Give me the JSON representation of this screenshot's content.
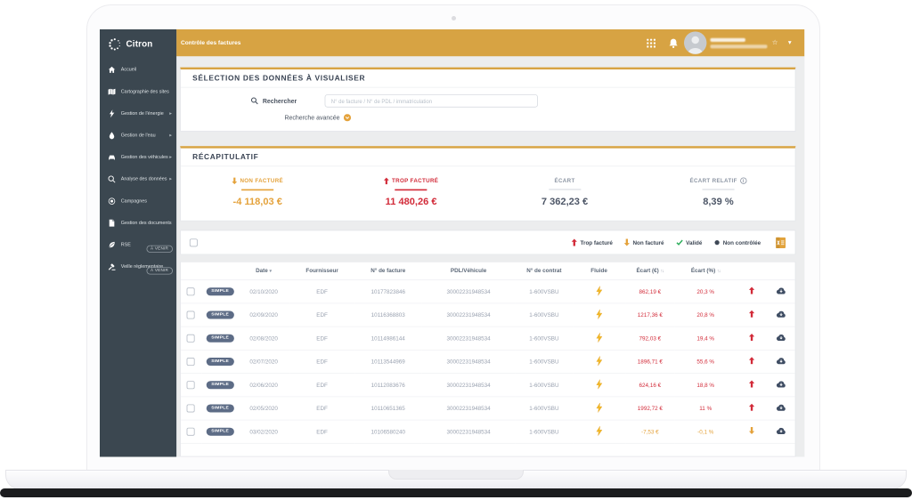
{
  "brand": {
    "name": "Citron"
  },
  "topbar": {
    "title": "Contrôle des factures",
    "user_name_redacted": true
  },
  "sidebar": {
    "items": [
      {
        "icon": "home-icon",
        "label": "Accueil"
      },
      {
        "icon": "map-icon",
        "label": "Cartographie des sites"
      },
      {
        "icon": "energy-icon",
        "label": "Gestion de l'énergie",
        "expandable": true
      },
      {
        "icon": "water-icon",
        "label": "Gestion de l'eau",
        "expandable": true
      },
      {
        "icon": "vehicle-icon",
        "label": "Gestion des véhicules",
        "expandable": true
      },
      {
        "icon": "analytics-icon",
        "label": "Analyse des données",
        "expandable": true
      },
      {
        "icon": "campaign-icon",
        "label": "Campagnes"
      },
      {
        "icon": "document-icon",
        "label": "Gestion des documents"
      },
      {
        "icon": "leaf-icon",
        "label": "RSE",
        "badge": "À VENIR"
      },
      {
        "icon": "gavel-icon",
        "label": "Veille réglementaire",
        "badge": "À VENIR"
      }
    ]
  },
  "selection": {
    "title": "SÉLECTION DES DONNÉES À VISUALISER",
    "search_label": "Rechercher",
    "search_placeholder": "N° de facture / N° de PDL / immatriculation",
    "advanced_label": "Recherche avancée"
  },
  "recap": {
    "title": "RÉCAPITULATIF",
    "stats": [
      {
        "label": "NON FACTURÉ",
        "value": "-4 118,03 €",
        "tone": "gold",
        "arrow": "down"
      },
      {
        "label": "TROP FACTURÉ",
        "value": "11 480,26 €",
        "tone": "red",
        "arrow": "up"
      },
      {
        "label": "ÉCART",
        "value": "7 362,23 €",
        "tone": "neutral"
      },
      {
        "label": "ÉCART RELATIF",
        "value": "8,39 %",
        "tone": "neutral",
        "info": true
      }
    ]
  },
  "legend": {
    "items": [
      {
        "icon": "arrow-up",
        "color": "#D22B39",
        "label": "Trop facturé"
      },
      {
        "icon": "arrow-down",
        "color": "#E4A23B",
        "label": "Non facturé"
      },
      {
        "icon": "check",
        "color": "#2EAE5C",
        "label": "Validé"
      },
      {
        "icon": "dot",
        "color": "#3E4856",
        "label": "Non contrôlée"
      }
    ]
  },
  "table": {
    "columns": [
      "",
      "",
      "Date",
      "Fournisseur",
      "N° de facture",
      "PDL/Véhicule",
      "N° de contrat",
      "Fluide",
      "Écart (€)",
      "Écart (%)",
      "",
      ""
    ],
    "rows": [
      {
        "badge": "SIMPLE",
        "date": "02/10/2020",
        "supplier": "EDF",
        "invoice": "10177823846",
        "pdl": "30002231948534",
        "contract": "1-600VSBU",
        "fluid": "electricity",
        "amount": "862,19 €",
        "percent": "20,3 %",
        "direction": "up"
      },
      {
        "badge": "SIMPLE",
        "date": "02/09/2020",
        "supplier": "EDF",
        "invoice": "10116368803",
        "pdl": "30002231948534",
        "contract": "1-600VSBU",
        "fluid": "electricity",
        "amount": "1217,36 €",
        "percent": "20,8 %",
        "direction": "up"
      },
      {
        "badge": "SIMPLE",
        "date": "02/08/2020",
        "supplier": "EDF",
        "invoice": "10114986144",
        "pdl": "30002231948534",
        "contract": "1-600VSBU",
        "fluid": "electricity",
        "amount": "792,03 €",
        "percent": "19,4 %",
        "direction": "up"
      },
      {
        "badge": "SIMPLE",
        "date": "02/07/2020",
        "supplier": "EDF",
        "invoice": "10113544969",
        "pdl": "30002231948534",
        "contract": "1-600VSBU",
        "fluid": "electricity",
        "amount": "1896,71 €",
        "percent": "55,6 %",
        "direction": "up"
      },
      {
        "badge": "SIMPLE",
        "date": "02/06/2020",
        "supplier": "EDF",
        "invoice": "10112083676",
        "pdl": "30002231948534",
        "contract": "1-600VSBU",
        "fluid": "electricity",
        "amount": "624,16 €",
        "percent": "18,8 %",
        "direction": "up"
      },
      {
        "badge": "SIMPLE",
        "date": "02/05/2020",
        "supplier": "EDF",
        "invoice": "10110651365",
        "pdl": "30002231948534",
        "contract": "1-600VSBU",
        "fluid": "electricity",
        "amount": "1992,72 €",
        "percent": "11 %",
        "direction": "up"
      },
      {
        "badge": "SIMPLE",
        "date": "03/02/2020",
        "supplier": "EDF",
        "invoice": "10106580240",
        "pdl": "30002231948534",
        "contract": "1-600VSBU",
        "fluid": "electricity",
        "amount": "-7,53 €",
        "percent": "-0,1 %",
        "direction": "down"
      }
    ]
  },
  "colors": {
    "topbar_gold": "#D7A343",
    "accent_gold": "#E4A23B",
    "alert_red": "#D22B39",
    "valid_green": "#2EAE5C",
    "sidebar_bg": "#3B4750",
    "badge_bg": "#5D6C86"
  }
}
